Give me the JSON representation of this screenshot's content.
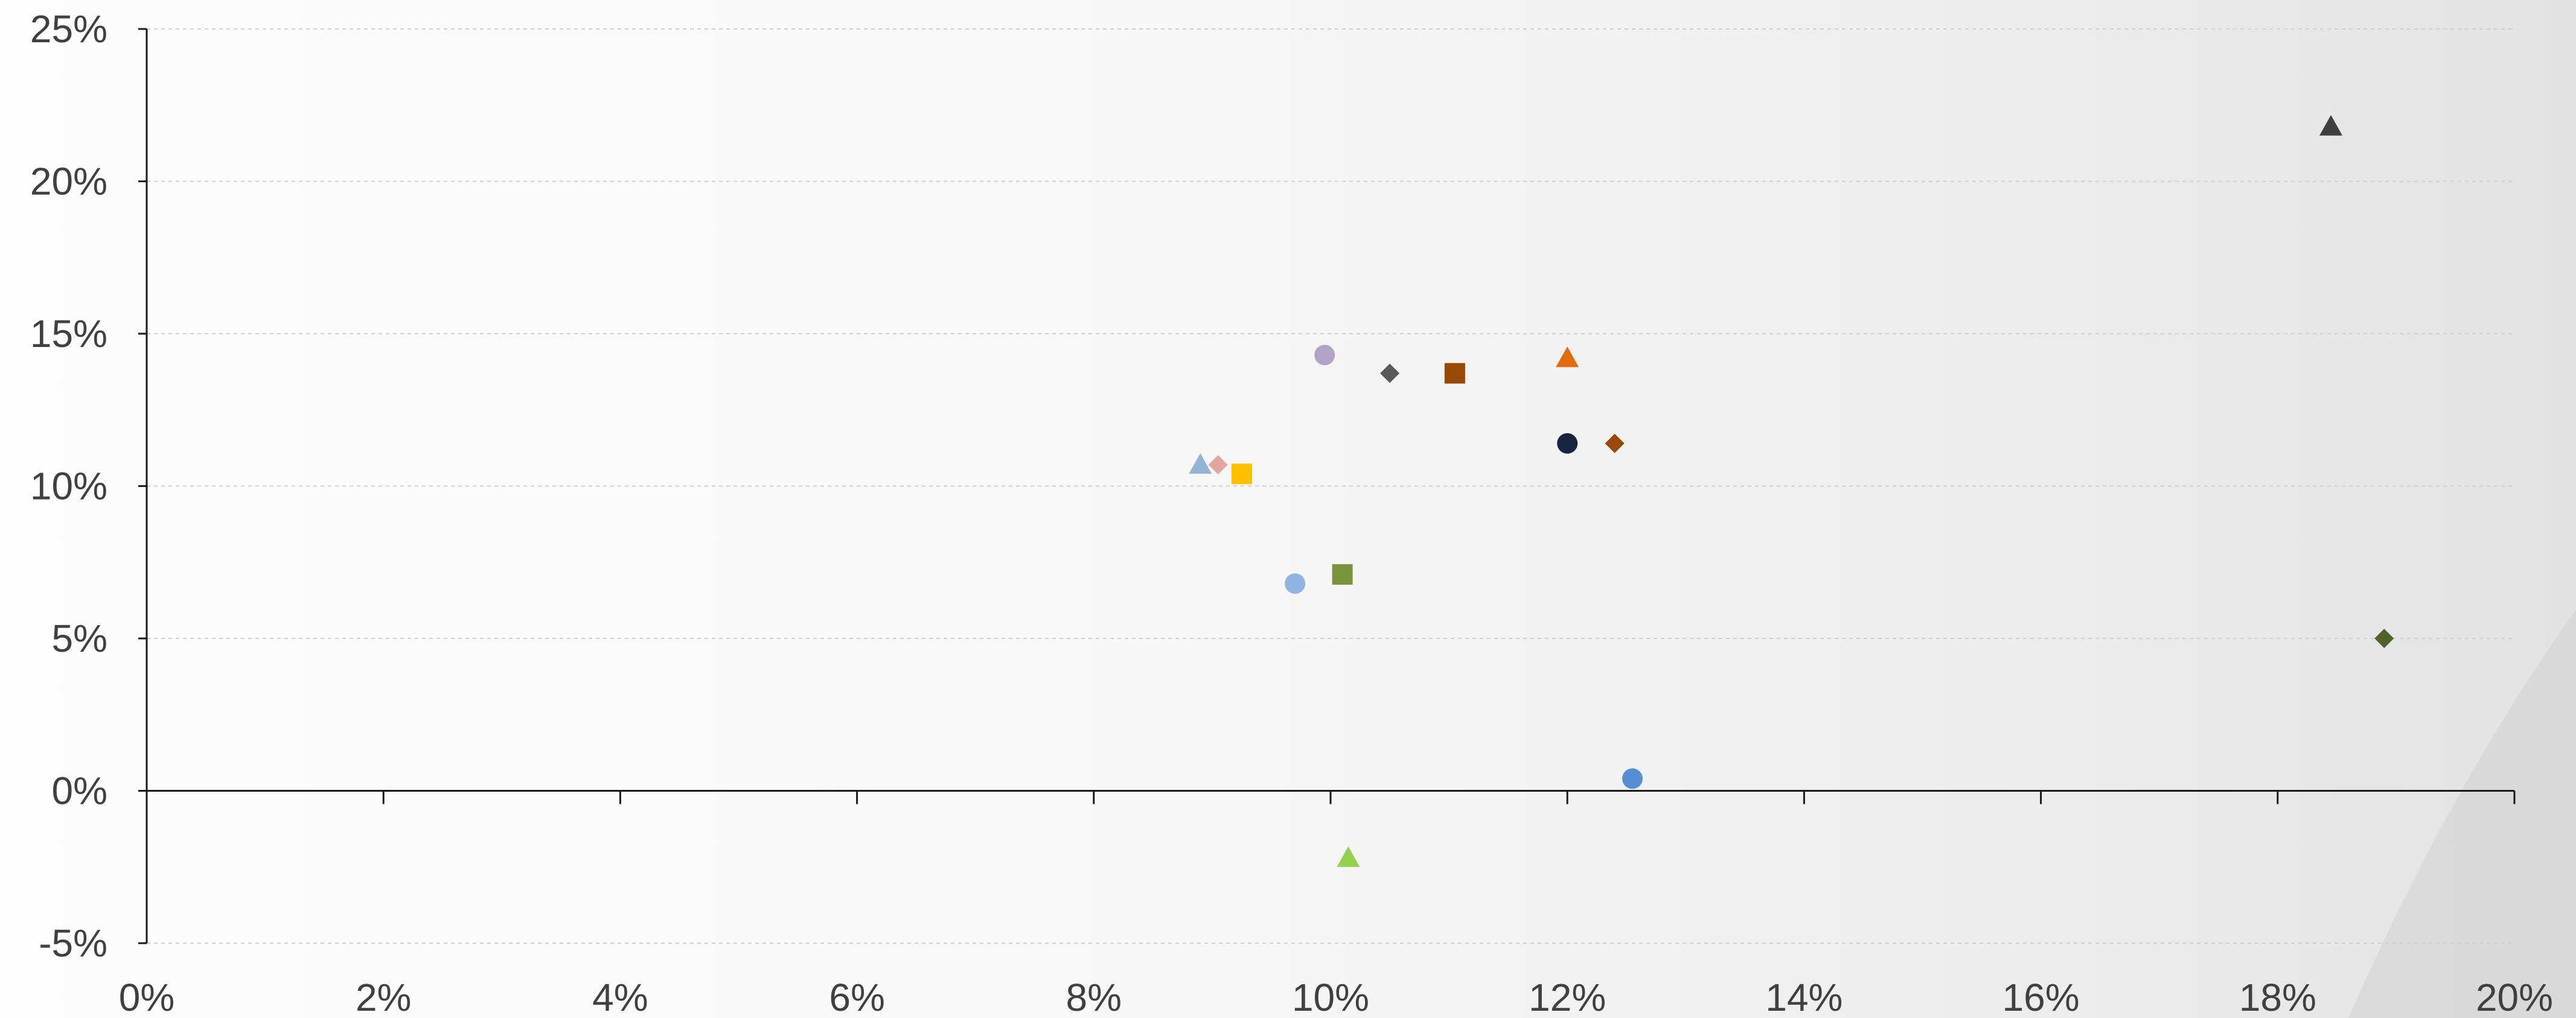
{
  "chart_data": {
    "type": "scatter",
    "title": "",
    "xlabel": "",
    "ylabel": "",
    "xlim": [
      0,
      20
    ],
    "ylim": [
      -5,
      25
    ],
    "x_ticks": [
      0,
      2,
      4,
      6,
      8,
      10,
      12,
      14,
      16,
      18,
      20
    ],
    "y_ticks": [
      -5,
      0,
      5,
      10,
      15,
      20,
      25
    ],
    "x_tick_labels": [
      "0%",
      "2%",
      "4%",
      "6%",
      "8%",
      "10%",
      "12%",
      "14%",
      "16%",
      "18%",
      "20%"
    ],
    "y_tick_labels": [
      "-5%",
      "0%",
      "5%",
      "10%",
      "15%",
      "20%",
      "25%"
    ],
    "grid": "horizontal",
    "legend": "none",
    "points": [
      {
        "x": 18.45,
        "y": 21.8,
        "marker": "triangle",
        "color": "#404040"
      },
      {
        "x": 18.9,
        "y": 5.0,
        "marker": "diamond",
        "color": "#4f6228"
      },
      {
        "x": 9.95,
        "y": 14.3,
        "marker": "circle",
        "color": "#b2a2c7"
      },
      {
        "x": 10.5,
        "y": 13.7,
        "marker": "diamond",
        "color": "#595959"
      },
      {
        "x": 11.05,
        "y": 13.7,
        "marker": "square",
        "color": "#984807"
      },
      {
        "x": 12.0,
        "y": 14.2,
        "marker": "triangle",
        "color": "#e46c0a"
      },
      {
        "x": 12.0,
        "y": 11.4,
        "marker": "circle",
        "color": "#17243f"
      },
      {
        "x": 12.4,
        "y": 11.4,
        "marker": "diamond",
        "color": "#984807"
      },
      {
        "x": 8.9,
        "y": 10.7,
        "marker": "triangle",
        "color": "#95b3d7"
      },
      {
        "x": 9.05,
        "y": 10.7,
        "marker": "diamond",
        "color": "#e6a4a0"
      },
      {
        "x": 9.25,
        "y": 10.4,
        "marker": "square",
        "color": "#ffc000"
      },
      {
        "x": 9.7,
        "y": 6.8,
        "marker": "circle",
        "color": "#8eb4e3"
      },
      {
        "x": 10.1,
        "y": 7.1,
        "marker": "square",
        "color": "#77933c"
      },
      {
        "x": 12.55,
        "y": 0.4,
        "marker": "circle",
        "color": "#558ed5"
      },
      {
        "x": 10.15,
        "y": -2.2,
        "marker": "triangle",
        "color": "#92d050"
      }
    ]
  },
  "colors": {
    "axis": "#1a1a1a",
    "grid": "#d0d0d0",
    "tick_text": "#404040"
  }
}
